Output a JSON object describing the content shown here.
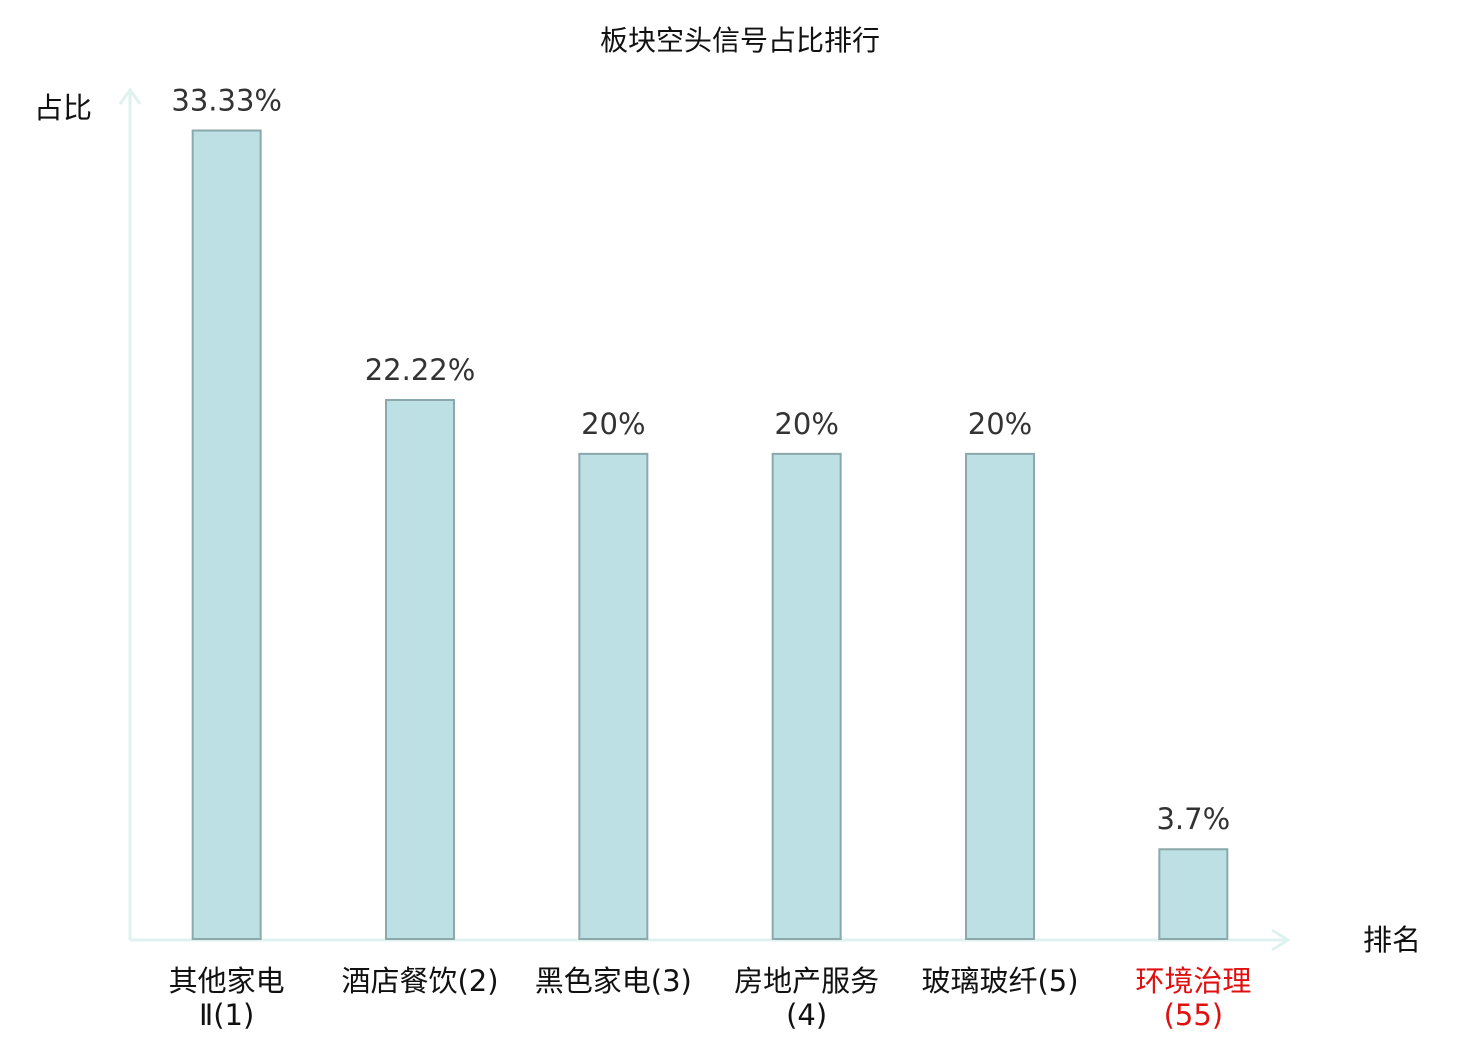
{
  "chart_data": {
    "type": "bar",
    "title": "板块空头信号占比排行",
    "y_label": "占比",
    "x_label": "排名",
    "categories": [
      "其他家电Ⅱ(1)",
      "酒店餐饮(2)",
      "黑色家电(3)",
      "房地产服务(4)",
      "玻璃玻纤(5)",
      "环境治理(55)"
    ],
    "category_colors": [
      "#111111",
      "#111111",
      "#111111",
      "#111111",
      "#111111",
      "#e01010"
    ],
    "values": [
      33.33,
      22.22,
      20,
      20,
      20,
      3.7
    ],
    "value_labels": [
      "33.33%",
      "22.22%",
      "20%",
      "20%",
      "20%",
      "3.7%"
    ],
    "color": "#bce0e3",
    "ylim": [
      0,
      35
    ]
  }
}
